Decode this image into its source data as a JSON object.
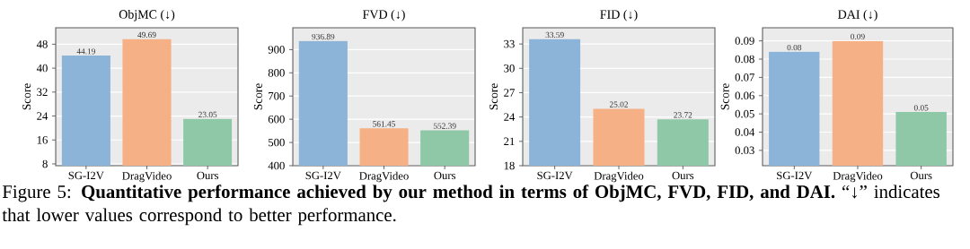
{
  "chart_data": [
    {
      "type": "bar",
      "title": "ObjMC (↓)",
      "ylabel": "Score",
      "categories": [
        "SG-I2V",
        "DragVideo",
        "Ours"
      ],
      "values": [
        44.19,
        49.69,
        23.05
      ],
      "colors": [
        "#8cb4d8",
        "#f5b185",
        "#8fc8a6"
      ],
      "ylim": [
        7.4,
        53.5
      ],
      "yticks": [
        8,
        16,
        24,
        32,
        40,
        48
      ],
      "grid": "y",
      "data_labels": true,
      "annotations": [
        "Figure 5: **Quantitative performance achieved by our method in terms of ObjMC, FVD, FID, and DAI.** “↓” indicates that lower values correspond to better performance."
      ]
    },
    {
      "type": "bar",
      "title": "FVD (↓)",
      "ylabel": "Score",
      "categories": [
        "SG-I2V",
        "DragVideo",
        "Ours"
      ],
      "values": [
        936.89,
        561.45,
        552.39
      ],
      "colors": [
        "#8cb4d8",
        "#f5b185",
        "#8fc8a6"
      ],
      "ylim": [
        400,
        994
      ],
      "yticks": [
        400,
        500,
        600,
        700,
        800,
        900
      ],
      "grid": "y",
      "data_labels": true
    },
    {
      "type": "bar",
      "title": "FID (↓)",
      "ylabel": "Score",
      "categories": [
        "SG-I2V",
        "DragVideo",
        "Ours"
      ],
      "values": [
        33.59,
        25.02,
        23.72
      ],
      "colors": [
        "#8cb4d8",
        "#f5b185",
        "#8fc8a6"
      ],
      "ylim": [
        18,
        35
      ],
      "yticks": [
        18,
        21,
        24,
        27,
        30,
        33
      ],
      "grid": "y",
      "data_labels": true
    },
    {
      "type": "bar",
      "title": "DAI (↓)",
      "ylabel": "Score",
      "categories": [
        "SG-I2V",
        "DragVideo",
        "Ours"
      ],
      "values": [
        0.084,
        0.09,
        0.051
      ],
      "value_labels": [
        "0.08",
        "0.09",
        "0.05"
      ],
      "colors": [
        "#8cb4d8",
        "#f5b185",
        "#8fc8a6"
      ],
      "ylim": [
        0.0216,
        0.0972
      ],
      "yticks": [
        0.03,
        0.04,
        0.05,
        0.06,
        0.07,
        0.08,
        0.09
      ],
      "grid": "y"
    }
  ]
}
